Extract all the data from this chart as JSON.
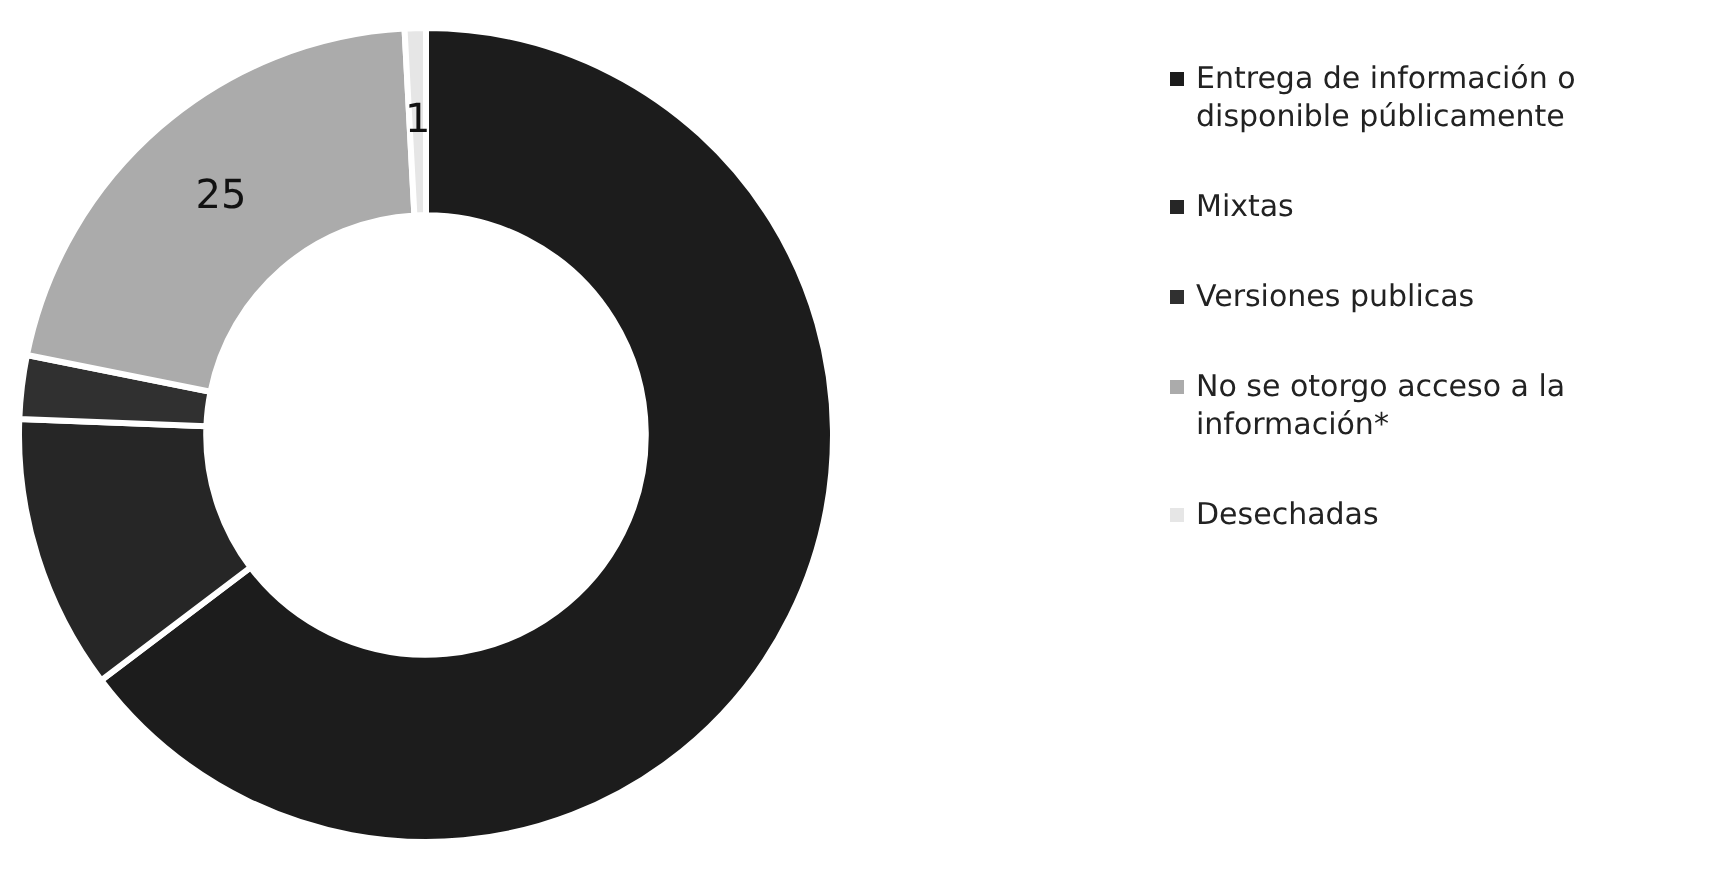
{
  "chart_data": {
    "type": "donut",
    "categories": [
      "Entrega de información o disponible públicamente",
      "Mixtas",
      "Versiones publicas",
      "No se otorgo acceso a la información*",
      "Desechadas"
    ],
    "values": [
      77,
      13,
      3,
      25,
      1
    ],
    "colors": [
      "#1c1c1c",
      "#262626",
      "#303030",
      "#ababab",
      "#e6e6e6"
    ],
    "value_labels": [
      null,
      null,
      null,
      "25",
      "1"
    ],
    "legend": "right"
  }
}
